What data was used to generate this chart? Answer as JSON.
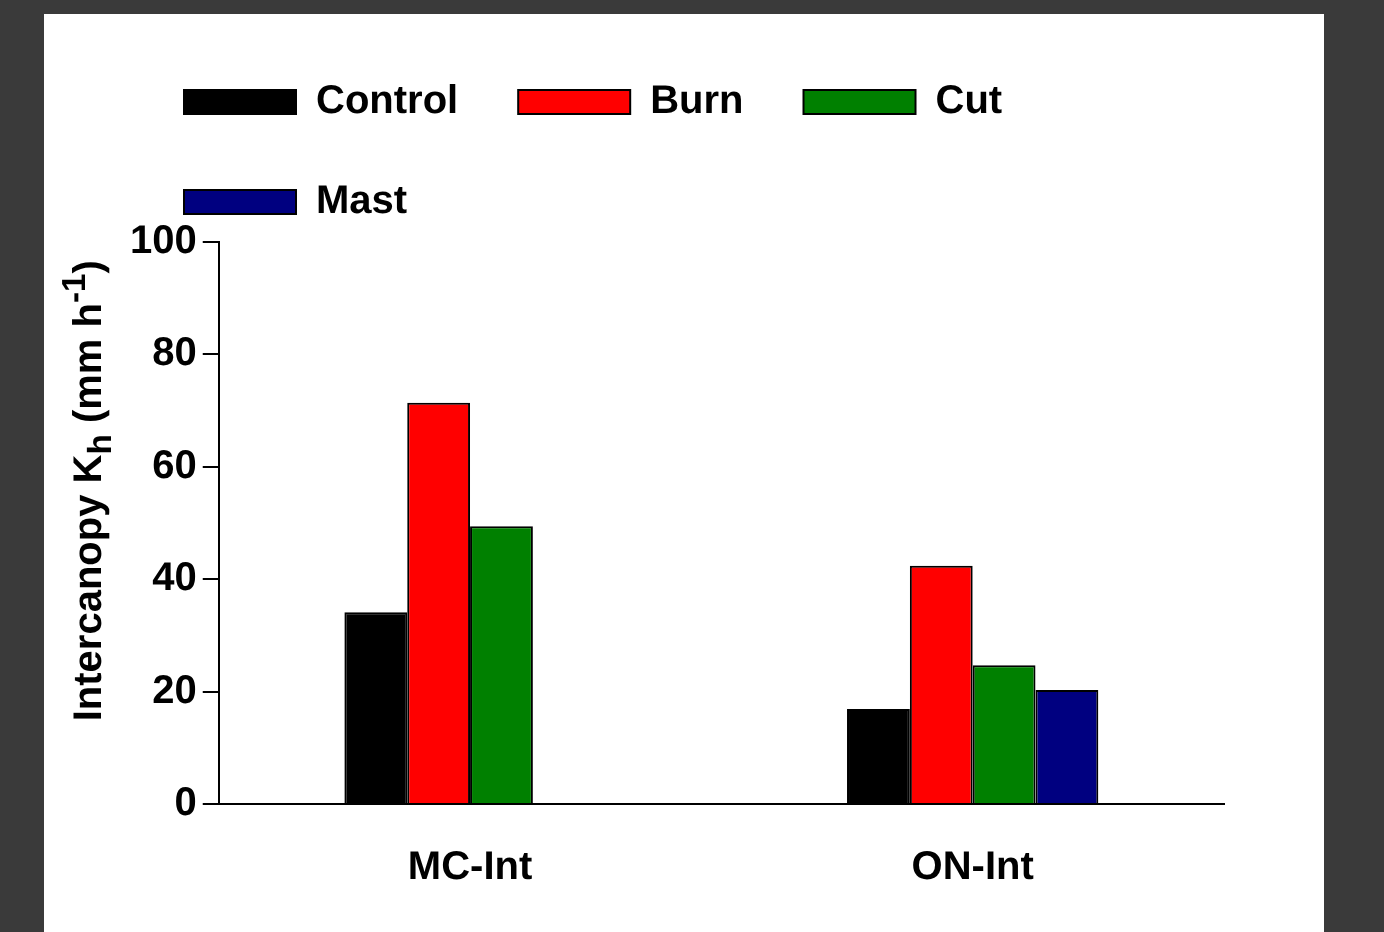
{
  "chart_data": {
    "type": "bar",
    "ylabel": "Intercanopy K$_{h}$ (mm h$^{-1}$)",
    "categories": [
      "MC-Int",
      "ON-Int"
    ],
    "series": [
      {
        "name": "Control",
        "color": "#000000",
        "values": [
          34.1,
          16.9
        ]
      },
      {
        "name": "Burn",
        "color": "#ff0000",
        "values": [
          71.4,
          42.4
        ]
      },
      {
        "name": "Cut",
        "color": "#008000",
        "values": [
          49.4,
          24.7
        ]
      },
      {
        "name": "Mast",
        "color": "#000080",
        "values": [
          null,
          20.3
        ]
      }
    ],
    "ylim": [
      0,
      100
    ],
    "yticks": [
      0,
      20,
      40,
      60,
      80,
      100
    ],
    "grid": false,
    "legend": "top"
  }
}
